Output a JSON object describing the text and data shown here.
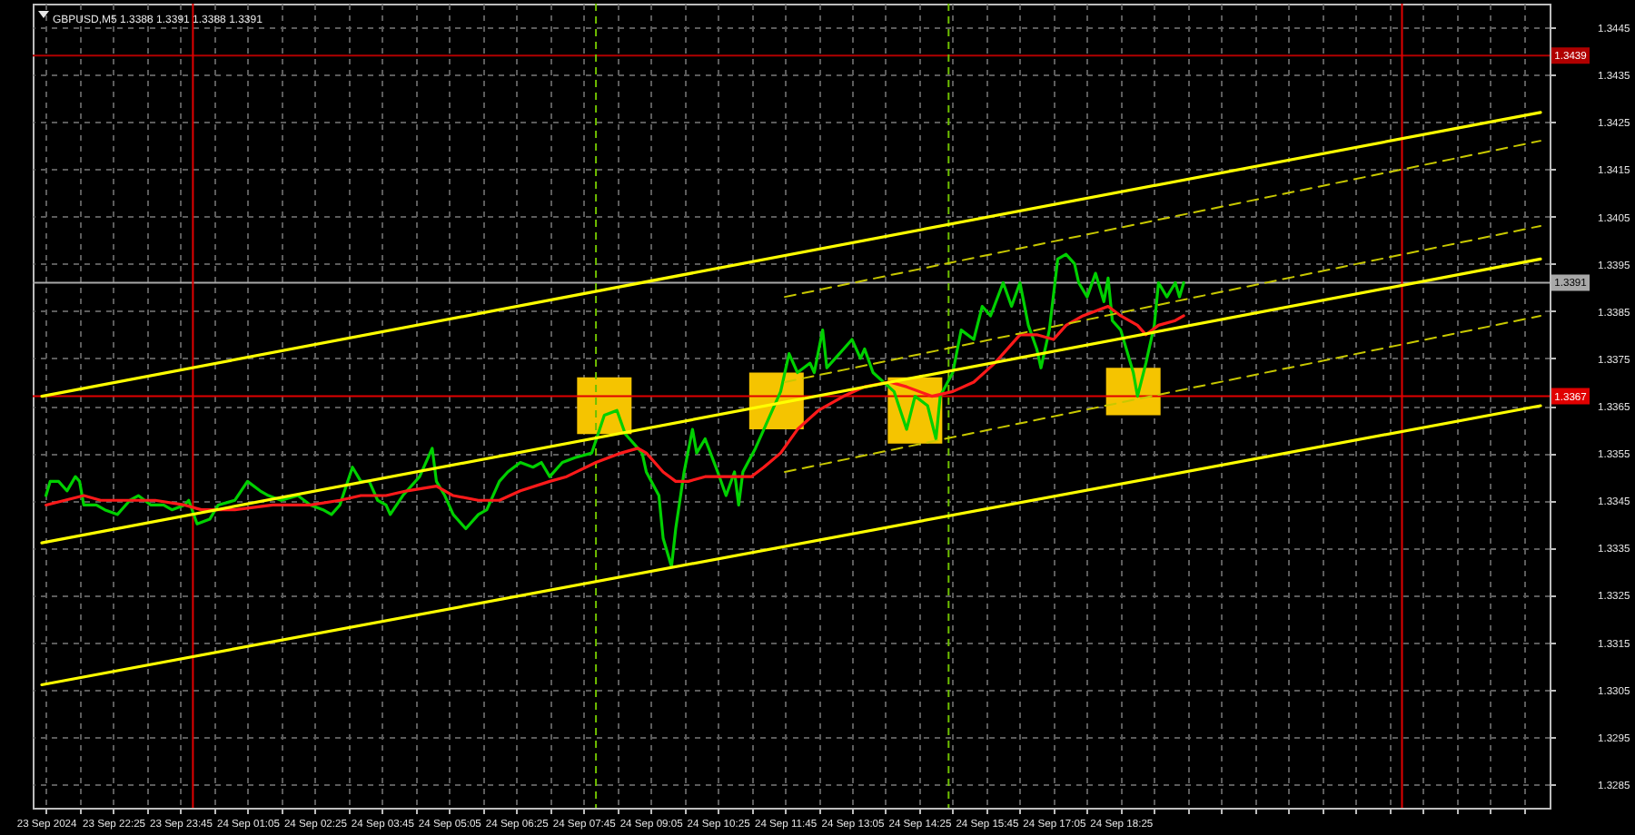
{
  "chart_data": {
    "type": "line",
    "title": "GBPUSD,M5  1.3388 1.3391 1.3388 1.3391",
    "xlim": [
      "2024-09-23T21:00",
      "2024-09-25T02:45"
    ],
    "ylim": [
      1.328,
      1.345
    ],
    "xticks": [
      {
        "value": "2024-09-23T21:05",
        "label": "23 Sep 2024"
      },
      {
        "value": "2024-09-23T21:45",
        "label": null
      },
      {
        "value": "2024-09-23T22:25",
        "label": "23 Sep 22:25"
      },
      {
        "value": "2024-09-23T23:05",
        "label": null
      },
      {
        "value": "2024-09-23T23:45",
        "label": "23 Sep 23:45"
      },
      {
        "value": "2024-09-24T00:25",
        "label": null
      },
      {
        "value": "2024-09-24T01:05",
        "label": "24 Sep 01:05"
      },
      {
        "value": "2024-09-24T01:45",
        "label": null
      },
      {
        "value": "2024-09-24T02:25",
        "label": "24 Sep 02:25"
      },
      {
        "value": "2024-09-24T03:05",
        "label": null
      },
      {
        "value": "2024-09-24T03:45",
        "label": "24 Sep 03:45"
      },
      {
        "value": "2024-09-24T04:25",
        "label": null
      },
      {
        "value": "2024-09-24T05:05",
        "label": "24 Sep 05:05"
      },
      {
        "value": "2024-09-24T05:45",
        "label": null
      },
      {
        "value": "2024-09-24T06:25",
        "label": "24 Sep 06:25"
      },
      {
        "value": "2024-09-24T07:05",
        "label": null
      },
      {
        "value": "2024-09-24T07:45",
        "label": "24 Sep 07:45"
      },
      {
        "value": "2024-09-24T08:25",
        "label": null
      },
      {
        "value": "2024-09-24T09:05",
        "label": "24 Sep 09:05"
      },
      {
        "value": "2024-09-24T09:45",
        "label": null
      },
      {
        "value": "2024-09-24T10:25",
        "label": "24 Sep 10:25"
      },
      {
        "value": "2024-09-24T11:05",
        "label": null
      },
      {
        "value": "2024-09-24T11:45",
        "label": "24 Sep 11:45"
      },
      {
        "value": "2024-09-24T12:25",
        "label": null
      },
      {
        "value": "2024-09-24T13:05",
        "label": "24 Sep 13:05"
      },
      {
        "value": "2024-09-24T13:45",
        "label": null
      },
      {
        "value": "2024-09-24T14:25",
        "label": "24 Sep 14:25"
      },
      {
        "value": "2024-09-24T15:05",
        "label": null
      },
      {
        "value": "2024-09-24T15:45",
        "label": "24 Sep 15:45"
      },
      {
        "value": "2024-09-24T16:25",
        "label": null
      },
      {
        "value": "2024-09-24T17:05",
        "label": "24 Sep 17:05"
      },
      {
        "value": "2024-09-24T17:45",
        "label": null
      },
      {
        "value": "2024-09-24T18:25",
        "label": "24 Sep 18:25"
      },
      {
        "value": "2024-09-24T19:05",
        "label": null
      },
      {
        "value": "2024-09-24T19:45",
        "label": null
      },
      {
        "value": "2024-09-24T20:25",
        "label": null
      },
      {
        "value": "2024-09-24T21:05",
        "label": null
      },
      {
        "value": "2024-09-24T21:45",
        "label": null
      },
      {
        "value": "2024-09-24T22:25",
        "label": null
      },
      {
        "value": "2024-09-24T23:05",
        "label": null
      },
      {
        "value": "2024-09-24T23:45",
        "label": null
      },
      {
        "value": "2024-09-25T00:25",
        "label": null
      },
      {
        "value": "2024-09-25T01:05",
        "label": null
      },
      {
        "value": "2024-09-25T01:45",
        "label": null
      },
      {
        "value": "2024-09-25T02:25",
        "label": null
      }
    ],
    "yticks": [
      1.3285,
      1.3295,
      1.3305,
      1.3315,
      1.3325,
      1.3335,
      1.3345,
      1.3355,
      1.3365,
      1.3375,
      1.3385,
      1.3395,
      1.3405,
      1.3415,
      1.3425,
      1.3435,
      1.3445
    ],
    "grid": true,
    "series": [
      {
        "type": "bar",
        "color": "#f5c400",
        "x": [
          "2024-09-24T08:10",
          "2024-09-24T11:35",
          "2024-09-24T14:20",
          "2024-09-24T18:40"
        ],
        "base": [
          1.3359,
          1.336,
          1.3357,
          1.3363
        ],
        "values": [
          0.0012,
          0.0012,
          0.0014,
          0.001
        ]
      },
      {
        "color": "#00d000",
        "x": [
          "2024-09-23T21:05",
          "2024-09-23T21:10",
          "2024-09-23T21:20",
          "2024-09-23T21:30",
          "2024-09-23T21:40",
          "2024-09-23T21:45",
          "2024-09-23T21:50",
          "2024-09-23T22:05",
          "2024-09-23T22:15",
          "2024-09-23T22:30",
          "2024-09-23T22:45",
          "2024-09-23T22:55",
          "2024-09-23T23:10",
          "2024-09-23T23:25",
          "2024-09-23T23:35",
          "2024-09-23T23:50",
          "2024-09-23T23:55",
          "2024-09-24T00:05",
          "2024-09-24T00:20",
          "2024-09-24T00:30",
          "2024-09-24T00:50",
          "2024-09-24T01:05",
          "2024-09-24T01:20",
          "2024-09-24T01:30",
          "2024-09-24T01:45",
          "2024-09-24T02:05",
          "2024-09-24T02:20",
          "2024-09-24T02:35",
          "2024-09-24T02:45",
          "2024-09-24T02:55",
          "2024-09-24T03:10",
          "2024-09-24T03:20",
          "2024-09-24T03:30",
          "2024-09-24T03:40",
          "2024-09-24T03:50",
          "2024-09-24T03:55",
          "2024-09-24T04:10",
          "2024-09-24T04:30",
          "2024-09-24T04:45",
          "2024-09-24T04:50",
          "2024-09-24T05:00",
          "2024-09-24T05:10",
          "2024-09-24T05:25",
          "2024-09-24T05:40",
          "2024-09-24T05:50",
          "2024-09-24T06:05",
          "2024-09-24T06:15",
          "2024-09-24T06:30",
          "2024-09-24T06:45",
          "2024-09-24T06:55",
          "2024-09-24T07:05",
          "2024-09-24T07:20",
          "2024-09-24T07:35",
          "2024-09-24T07:55",
          "2024-09-24T08:10",
          "2024-09-24T08:25",
          "2024-09-24T08:35",
          "2024-09-24T08:55",
          "2024-09-24T09:00",
          "2024-09-24T09:15",
          "2024-09-24T09:20",
          "2024-09-24T09:30",
          "2024-09-24T09:35",
          "2024-09-24T09:45",
          "2024-09-24T09:55",
          "2024-09-24T10:00",
          "2024-09-24T10:10",
          "2024-09-24T10:25",
          "2024-09-24T10:35",
          "2024-09-24T10:45",
          "2024-09-24T10:50",
          "2024-09-24T10:55",
          "2024-09-24T11:10",
          "2024-09-24T11:25",
          "2024-09-24T11:40",
          "2024-09-24T11:50",
          "2024-09-24T12:00",
          "2024-09-24T12:15",
          "2024-09-24T12:20",
          "2024-09-24T12:30",
          "2024-09-24T12:35",
          "2024-09-24T12:45",
          "2024-09-24T12:55",
          "2024-09-24T13:05",
          "2024-09-24T13:15",
          "2024-09-24T13:20",
          "2024-09-24T13:30",
          "2024-09-24T13:55",
          "2024-09-24T14:10",
          "2024-09-24T14:20",
          "2024-09-24T14:35",
          "2024-09-24T14:45",
          "2024-09-24T14:50",
          "2024-09-24T15:05",
          "2024-09-24T15:15",
          "2024-09-24T15:30",
          "2024-09-24T15:40",
          "2024-09-24T15:50",
          "2024-09-24T16:05",
          "2024-09-24T16:15",
          "2024-09-24T16:25",
          "2024-09-24T16:35",
          "2024-09-24T16:45",
          "2024-09-24T16:50",
          "2024-09-24T17:00",
          "2024-09-24T17:10",
          "2024-09-24T17:20",
          "2024-09-24T17:30",
          "2024-09-24T17:35",
          "2024-09-24T17:45",
          "2024-09-24T17:55",
          "2024-09-24T18:05",
          "2024-09-24T18:10",
          "2024-09-24T18:15",
          "2024-09-24T18:25",
          "2024-09-24T18:40",
          "2024-09-24T18:45",
          "2024-09-24T18:55",
          "2024-09-24T19:05",
          "2024-09-24T19:10",
          "2024-09-24T19:20",
          "2024-09-24T19:30",
          "2024-09-24T19:35",
          "2024-09-24T19:40"
        ],
        "values": [
          1.3346,
          1.3349,
          1.3349,
          1.3347,
          1.335,
          1.3349,
          1.3344,
          1.3344,
          1.3343,
          1.3342,
          1.3345,
          1.3346,
          1.3344,
          1.3344,
          1.3343,
          1.3344,
          1.3345,
          1.334,
          1.3341,
          1.3344,
          1.3345,
          1.3349,
          1.3347,
          1.3346,
          1.3345,
          1.3346,
          1.3344,
          1.3343,
          1.3342,
          1.3344,
          1.3352,
          1.3349,
          1.3349,
          1.3345,
          1.3344,
          1.3342,
          1.3346,
          1.335,
          1.3356,
          1.3349,
          1.3346,
          1.3342,
          1.3339,
          1.3342,
          1.3343,
          1.3349,
          1.3351,
          1.3353,
          1.3352,
          1.3353,
          1.335,
          1.3353,
          1.3354,
          1.3355,
          1.3363,
          1.3364,
          1.3359,
          1.3355,
          1.3351,
          1.3346,
          1.3337,
          1.3331,
          1.3339,
          1.3351,
          1.336,
          1.3355,
          1.3358,
          1.3351,
          1.3346,
          1.3351,
          1.3344,
          1.3351,
          1.3356,
          1.3362,
          1.3368,
          1.3376,
          1.3372,
          1.3374,
          1.3372,
          1.3381,
          1.3373,
          1.3375,
          1.3377,
          1.3379,
          1.3375,
          1.3377,
          1.3372,
          1.3368,
          1.336,
          1.3367,
          1.3365,
          1.3358,
          1.3367,
          1.3372,
          1.3381,
          1.3379,
          1.3386,
          1.3384,
          1.3391,
          1.3386,
          1.3391,
          1.3382,
          1.3377,
          1.3373,
          1.3381,
          1.3396,
          1.3397,
          1.3395,
          1.3391,
          1.3388,
          1.3393,
          1.3387,
          1.3392,
          1.3383,
          1.3381,
          1.3372,
          1.3367,
          1.3374,
          1.3382,
          1.3391,
          1.3388,
          1.3391,
          1.3388,
          1.3391
        ]
      },
      {
        "color": "#ff1a1a",
        "x": [
          "2024-09-23T21:05",
          "2024-09-23T21:50",
          "2024-09-23T22:10",
          "2024-09-23T22:45",
          "2024-09-23T23:15",
          "2024-09-23T23:50",
          "2024-09-24T00:10",
          "2024-09-24T00:50",
          "2024-09-24T01:35",
          "2024-09-24T02:20",
          "2024-09-24T02:55",
          "2024-09-24T03:20",
          "2024-09-24T03:50",
          "2024-09-24T04:15",
          "2024-09-24T04:50",
          "2024-09-24T05:10",
          "2024-09-24T05:40",
          "2024-09-24T06:05",
          "2024-09-24T06:30",
          "2024-09-24T07:05",
          "2024-09-24T07:25",
          "2024-09-24T08:00",
          "2024-09-24T08:30",
          "2024-09-24T08:50",
          "2024-09-24T09:00",
          "2024-09-24T09:20",
          "2024-09-24T09:35",
          "2024-09-24T09:50",
          "2024-09-24T10:10",
          "2024-09-24T10:50",
          "2024-09-24T11:05",
          "2024-09-24T11:20",
          "2024-09-24T11:40",
          "2024-09-24T12:00",
          "2024-09-24T12:25",
          "2024-09-24T12:55",
          "2024-09-24T13:20",
          "2024-09-24T13:50",
          "2024-09-24T14:10",
          "2024-09-24T14:40",
          "2024-09-24T15:05",
          "2024-09-24T15:30",
          "2024-09-24T15:55",
          "2024-09-24T16:25",
          "2024-09-24T16:45",
          "2024-09-24T17:05",
          "2024-09-24T17:20",
          "2024-09-24T17:40",
          "2024-09-24T18:10",
          "2024-09-24T18:25",
          "2024-09-24T18:45",
          "2024-09-24T18:55",
          "2024-09-24T19:10",
          "2024-09-24T19:30",
          "2024-09-24T19:40"
        ],
        "values": [
          1.3344,
          1.3346,
          1.3345,
          1.3345,
          1.3345,
          1.3344,
          1.3343,
          1.3343,
          1.3344,
          1.3344,
          1.3345,
          1.3346,
          1.3346,
          1.3347,
          1.3348,
          1.3346,
          1.3345,
          1.3345,
          1.3347,
          1.3349,
          1.335,
          1.3353,
          1.3355,
          1.3356,
          1.3355,
          1.3351,
          1.3349,
          1.3349,
          1.335,
          1.335,
          1.335,
          1.3352,
          1.3355,
          1.336,
          1.3364,
          1.3367,
          1.3369,
          1.337,
          1.3369,
          1.3367,
          1.3368,
          1.337,
          1.3374,
          1.338,
          1.338,
          1.3379,
          1.3382,
          1.3384,
          1.3386,
          1.3384,
          1.3382,
          1.338,
          1.3382,
          1.3383,
          1.3384
        ]
      },
      {
        "color": "#ffff00",
        "x": [
          "2024-09-23T21:00",
          "2024-09-25T02:45"
        ],
        "values": [
          1.3367,
          1.3427
        ]
      },
      {
        "color": "#ffff00",
        "x": [
          "2024-09-23T21:00",
          "2024-09-25T02:45"
        ],
        "values": [
          1.3336,
          1.3396
        ]
      },
      {
        "color": "#ffff00",
        "x": [
          "2024-09-23T21:00",
          "2024-09-25T02:45"
        ],
        "values": [
          1.3306,
          1.3365
        ]
      },
      {
        "color": "#c8c800",
        "line_style": "dashed",
        "x": [
          "2024-09-24T11:45",
          "2024-09-25T02:45"
        ],
        "values": [
          1.3388,
          1.3421
        ]
      },
      {
        "color": "#c8c800",
        "line_style": "dashed",
        "x": [
          "2024-09-24T11:45",
          "2024-09-25T02:45"
        ],
        "values": [
          1.337,
          1.3403
        ]
      },
      {
        "color": "#c8c800",
        "line_style": "dashed",
        "x": [
          "2024-09-24T11:45",
          "2024-09-25T02:45"
        ],
        "values": [
          1.3351,
          1.3384
        ]
      }
    ],
    "ref_lines": [
      {
        "axis": "y",
        "value": 1.3439,
        "label": "1.3439",
        "color": "#b00000"
      },
      {
        "axis": "y",
        "value": 1.3391,
        "label": "1.3391",
        "color": "#a8a8a8"
      },
      {
        "axis": "y",
        "value": 1.3367,
        "label": "1.3367",
        "color": "#e00000"
      },
      {
        "axis": "x",
        "value": "2024-09-24T00:00",
        "color": "#e00000"
      },
      {
        "axis": "x",
        "value": "2024-09-25T00:00",
        "color": "#e00000"
      },
      {
        "axis": "x",
        "value": "2024-09-24T08:00",
        "color": "#6fbf00",
        "line_style": "dashed"
      },
      {
        "axis": "x",
        "value": "2024-09-24T15:00",
        "color": "#6fbf00",
        "line_style": "dashed"
      }
    ]
  }
}
